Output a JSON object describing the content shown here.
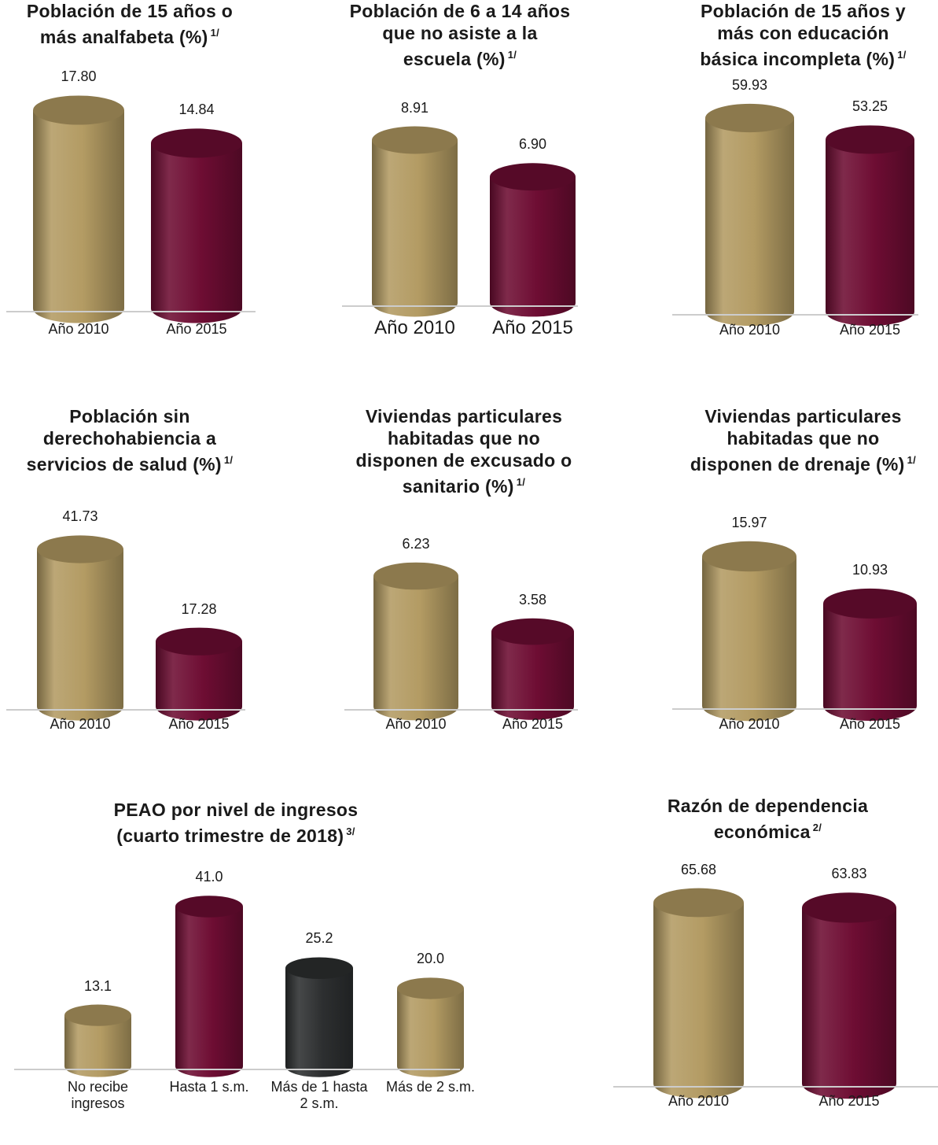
{
  "colors": {
    "gold": "#b39b63",
    "maroon": "#6e0d33",
    "dark": "#2d2f30",
    "axis": "#cccccc"
  },
  "charts": [
    {
      "id": "analfabeta",
      "chart_data": {
        "type": "bar",
        "title_lines": [
          "Población de 15 años o",
          "más analfabeta (%)"
        ],
        "footnote": "1/",
        "categories": [
          "Año 2010",
          "Año 2015"
        ],
        "values": [
          17.8,
          14.84
        ],
        "value_labels": [
          "17.80",
          "14.84"
        ],
        "colors": [
          "gold",
          "maroon"
        ]
      }
    },
    {
      "id": "no-asiste",
      "chart_data": {
        "type": "bar",
        "title_lines": [
          "Población de 6 a 14 años",
          "que no asiste a la",
          "escuela (%)"
        ],
        "footnote": "1/",
        "categories": [
          "Año 2010",
          "Año 2015"
        ],
        "values": [
          8.91,
          6.9
        ],
        "value_labels": [
          "8.91",
          "6.90"
        ],
        "colors": [
          "gold",
          "maroon"
        ]
      }
    },
    {
      "id": "basica-incompleta",
      "chart_data": {
        "type": "bar",
        "title_lines": [
          "Población de 15 años y",
          "más con educación",
          "básica incompleta (%)"
        ],
        "footnote": "1/",
        "categories": [
          "Año 2010",
          "Año 2015"
        ],
        "values": [
          59.93,
          53.25
        ],
        "value_labels": [
          "59.93",
          "53.25"
        ],
        "colors": [
          "gold",
          "maroon"
        ]
      }
    },
    {
      "id": "sin-derechohabiencia",
      "chart_data": {
        "type": "bar",
        "title_lines": [
          "Población sin",
          "derechohabiencia a",
          "servicios de salud (%)"
        ],
        "footnote": "1/",
        "categories": [
          "Año 2010",
          "Año 2015"
        ],
        "values": [
          41.73,
          17.28
        ],
        "value_labels": [
          "41.73",
          "17.28"
        ],
        "colors": [
          "gold",
          "maroon"
        ]
      }
    },
    {
      "id": "sin-excusado",
      "chart_data": {
        "type": "bar",
        "title_lines": [
          "Viviendas particulares",
          "habitadas que no",
          "disponen de excusado o",
          "sanitario (%)"
        ],
        "footnote": "1/",
        "categories": [
          "Año 2010",
          "Año 2015"
        ],
        "values": [
          6.23,
          3.58
        ],
        "value_labels": [
          "6.23",
          "3.58"
        ],
        "colors": [
          "gold",
          "maroon"
        ]
      }
    },
    {
      "id": "sin-drenaje",
      "chart_data": {
        "type": "bar",
        "title_lines": [
          "Viviendas particulares",
          "habitadas que no",
          "disponen de drenaje (%)"
        ],
        "footnote": "1/",
        "categories": [
          "Año 2010",
          "Año 2015"
        ],
        "values": [
          15.97,
          10.93
        ],
        "value_labels": [
          "15.97",
          "10.93"
        ],
        "colors": [
          "gold",
          "maroon"
        ]
      }
    },
    {
      "id": "peao-ingresos",
      "chart_data": {
        "type": "bar",
        "title_lines": [
          "PEAO por nivel de ingresos",
          "(cuarto trimestre de 2018)"
        ],
        "footnote": "3/",
        "categories": [
          "No recibe ingresos",
          "Hasta 1 s.m.",
          "Más de 1 hasta 2 s.m.",
          "Más de 2 s.m."
        ],
        "values": [
          13.1,
          41.0,
          25.2,
          20.0
        ],
        "value_labels": [
          "13.1",
          "41.0",
          "25.2",
          "20.0"
        ],
        "colors": [
          "gold",
          "maroon",
          "dark",
          "gold"
        ]
      }
    },
    {
      "id": "dependencia",
      "chart_data": {
        "type": "bar",
        "title_lines": [
          "Razón de dependencia",
          "económica"
        ],
        "footnote": "2/",
        "categories": [
          "Año 2010",
          "Año 2015"
        ],
        "values": [
          65.68,
          63.83
        ],
        "value_labels": [
          "65.68",
          "63.83"
        ],
        "colors": [
          "gold",
          "maroon"
        ]
      }
    }
  ]
}
